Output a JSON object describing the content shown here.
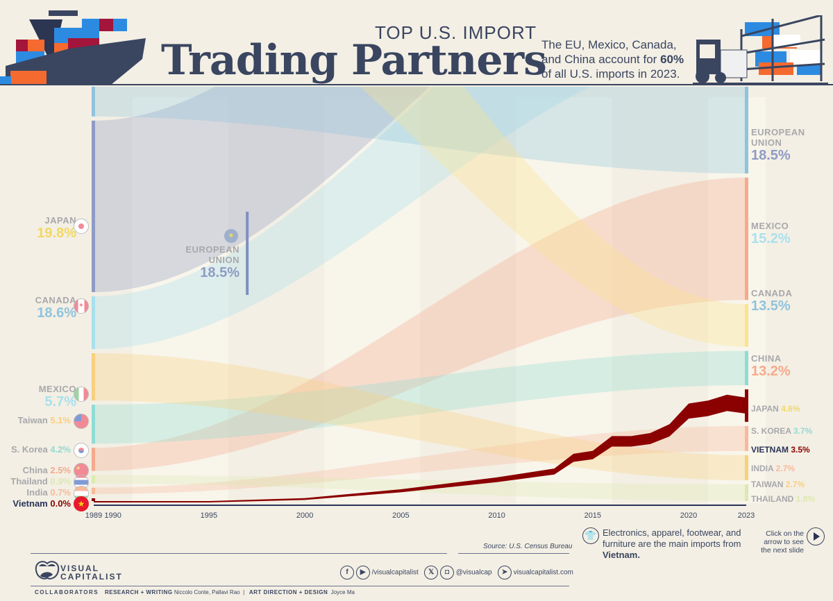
{
  "header": {
    "supertitle": "TOP U.S. IMPORT",
    "title": "Trading Partners",
    "subtitle_pre": "The EU, Mexico, Canada, and China account for ",
    "subtitle_bold": "60%",
    "subtitle_post": " of all U.S. imports in 2023."
  },
  "colors": {
    "background": "#f3efe4",
    "navy": "#3a4560",
    "eu": "#8e9bc4",
    "mexico": "#a9e0ee",
    "canada": "#8fc3de",
    "china": "#f6a98c",
    "japan": "#fbe48a",
    "skorea": "#8fdcd4",
    "vietnam": "#8b0000",
    "india": "#f8b99a",
    "taiwan": "#f9cf80",
    "thailand": "#dce9b0"
  },
  "chart_data": {
    "type": "bump-stream",
    "title": "Top U.S. Import Trading Partners",
    "xlabel": "",
    "ylabel": "",
    "x_ticks": [
      "1989",
      "1990",
      "1995",
      "2000",
      "2005",
      "2010",
      "2015",
      "2020",
      "2023"
    ],
    "x_range": [
      1989,
      2023
    ],
    "highlight_series": "Vietnam",
    "source": "Source: U.S. Census Bureau",
    "start_1989": [
      {
        "name": "JAPAN",
        "value": 19.8,
        "color": "#fbe48a"
      },
      {
        "name": "CANADA",
        "value": 18.6,
        "color": "#8fc3de"
      },
      {
        "name": "EUROPEAN UNION",
        "value": 18.5,
        "color": "#8e9bc4"
      },
      {
        "name": "MEXICO",
        "value": 5.7,
        "color": "#a9e0ee"
      },
      {
        "name": "Taiwan",
        "value": 5.1,
        "color": "#f9cf80"
      },
      {
        "name": "S. Korea",
        "value": 4.2,
        "color": "#8fdcd4"
      },
      {
        "name": "China",
        "value": 2.5,
        "color": "#f6a98c"
      },
      {
        "name": "Thailand",
        "value": 0.9,
        "color": "#dce9b0"
      },
      {
        "name": "India",
        "value": 0.7,
        "color": "#f8b99a"
      },
      {
        "name": "Vietnam",
        "value": 0.0,
        "color": "#8b0000"
      }
    ],
    "end_2023": [
      {
        "name": "EUROPEAN UNION",
        "value": 18.5,
        "color": "#8e9bc4"
      },
      {
        "name": "MEXICO",
        "value": 15.2,
        "color": "#a9e0ee"
      },
      {
        "name": "CANADA",
        "value": 13.5,
        "color": "#8fc3de"
      },
      {
        "name": "CHINA",
        "value": 13.2,
        "color": "#f6a98c"
      },
      {
        "name": "JAPAN",
        "value": 4.6,
        "color": "#fbe48a"
      },
      {
        "name": "S. KOREA",
        "value": 3.7,
        "color": "#8fdcd4"
      },
      {
        "name": "VIETNAM",
        "value": 3.5,
        "color": "#8b0000"
      },
      {
        "name": "INDIA",
        "value": 2.7,
        "color": "#f8b99a"
      },
      {
        "name": "TAIWAN",
        "value": 2.7,
        "color": "#f9cf80"
      },
      {
        "name": "THAILAND",
        "value": 1.8,
        "color": "#dce9b0"
      }
    ],
    "vietnam_series": {
      "years": [
        1989,
        1995,
        2000,
        2005,
        2010,
        2012,
        2013,
        2014,
        2015,
        2016,
        2017,
        2018,
        2019,
        2020,
        2021,
        2022,
        2023
      ],
      "values": [
        0.0,
        0.0,
        0.1,
        0.4,
        0.8,
        1.0,
        1.1,
        1.6,
        1.7,
        2.2,
        2.2,
        2.3,
        2.6,
        3.3,
        3.4,
        3.6,
        3.5
      ]
    }
  },
  "annotations": {
    "eu_mid_name_1": "EUROPEAN",
    "eu_mid_name_2": "UNION",
    "eu_mid_pct": "18.5%"
  },
  "left_labels": {
    "japan": {
      "name": "JAPAN",
      "pct": "19.8%"
    },
    "canada": {
      "name": "CANADA",
      "pct": "18.6%"
    },
    "mexico": {
      "name": "MEXICO",
      "pct": "5.7%"
    },
    "taiwan": {
      "name": "Taiwan",
      "pct": "5.1%"
    },
    "skorea": {
      "name": "S. Korea",
      "pct": "4.2%"
    },
    "china": {
      "name": "China",
      "pct": "2.5%"
    },
    "thailand": {
      "name": "Thailand",
      "pct": "0.9%"
    },
    "india": {
      "name": "India",
      "pct": "0.7%"
    },
    "vietnam": {
      "name": "Vietnam",
      "pct": "0.0%"
    }
  },
  "right_labels": {
    "eu": {
      "name1": "EUROPEAN",
      "name2": "UNION",
      "pct": "18.5%"
    },
    "mexico": {
      "name": "MEXICO",
      "pct": "15.2%"
    },
    "canada": {
      "name": "CANADA",
      "pct": "13.5%"
    },
    "china": {
      "name": "CHINA",
      "pct": "13.2%"
    },
    "japan": {
      "name": "JAPAN",
      "pct": "4.6%"
    },
    "skorea": {
      "name": "S. KOREA",
      "pct": "3.7%"
    },
    "vietnam": {
      "name": "VIETNAM",
      "pct": "3.5%"
    },
    "india": {
      "name": "INDIA",
      "pct": "2.7%"
    },
    "taiwan": {
      "name": "TAIWAN",
      "pct": "2.7%"
    },
    "thailand": {
      "name": "THAILAND",
      "pct": "1.8%"
    }
  },
  "note": {
    "pre": "Electronics, apparel, footwear, and furniture are the main imports from ",
    "bold": "Vietnam."
  },
  "cta": "Click on the arrow to see the next slide",
  "footer": {
    "logo_line1": "VISUAL",
    "logo_line2": "CAPITALIST",
    "social_1": "/visualcapitalist",
    "social_2": "@visualcap",
    "website": "visualcapitalist.com",
    "collaborators_label": "COLLABORATORS",
    "research_label": "RESEARCH + WRITING",
    "research_names": "Niccolo Conte, Pallavi Rao",
    "separator": "|",
    "design_label": "ART DIRECTION + DESIGN",
    "design_names": "Joyce Ma"
  }
}
